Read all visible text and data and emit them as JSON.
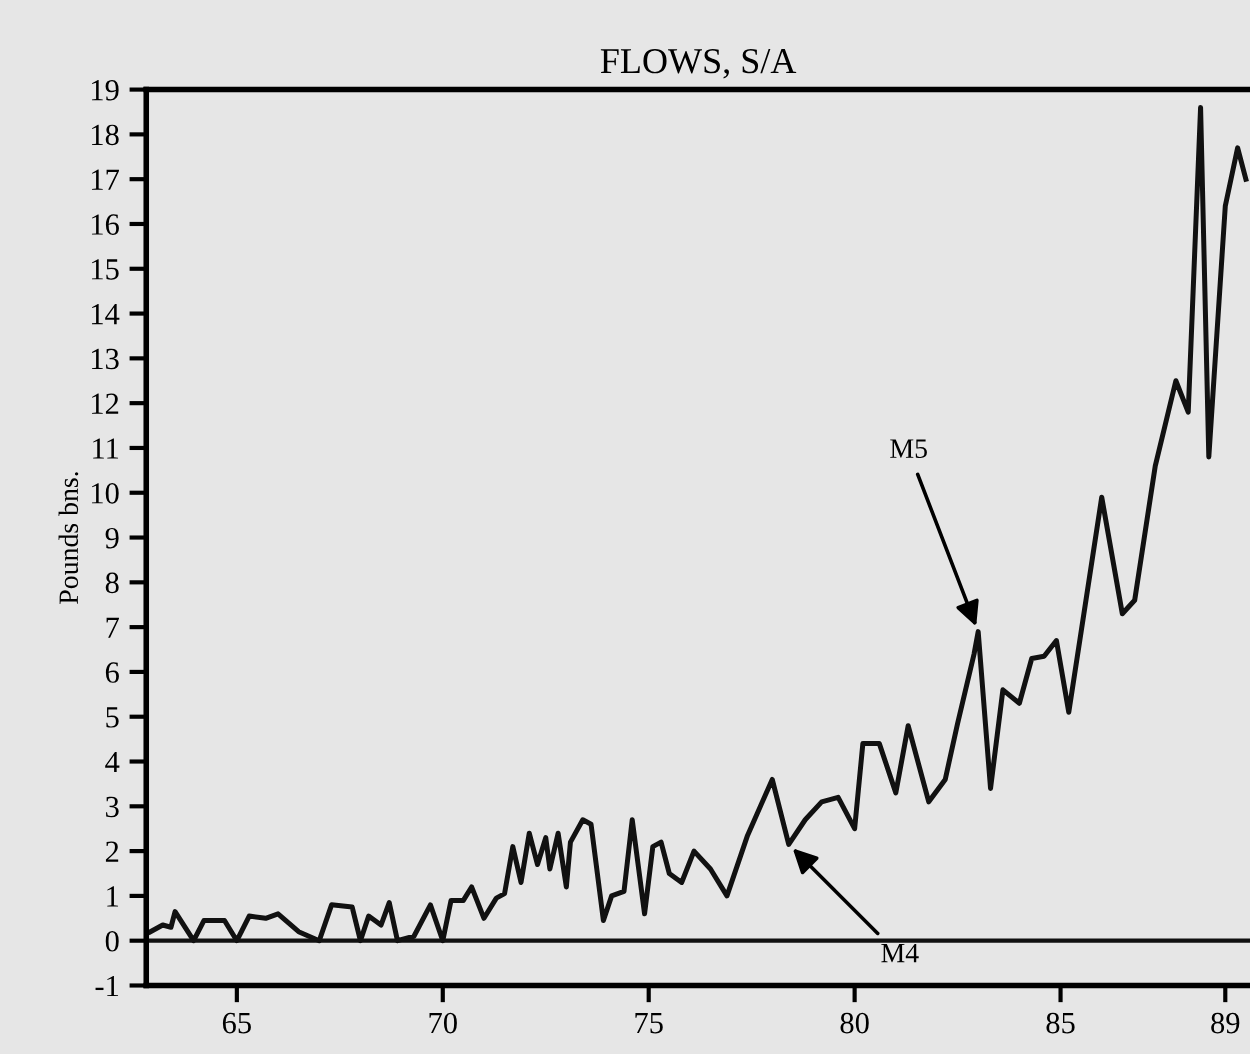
{
  "chart_data": {
    "type": "line",
    "title": "FLOWS, S/A",
    "ylabel": "Pounds bns.",
    "x": [
      62.9,
      63.2,
      63.4,
      63.5,
      63.95,
      64.2,
      64.7,
      65.0,
      65.3,
      65.7,
      66.0,
      66.5,
      67.0,
      67.3,
      67.8,
      68.0,
      68.2,
      68.5,
      68.7,
      68.9,
      69.3,
      69.7,
      70.0,
      70.2,
      70.5,
      70.7,
      71.0,
      71.3,
      71.5,
      71.7,
      71.9,
      72.1,
      72.3,
      72.5,
      72.6,
      72.8,
      73.0,
      73.1,
      73.4,
      73.6,
      73.9,
      74.1,
      74.4,
      74.6,
      74.9,
      75.1,
      75.3,
      75.5,
      75.8,
      76.1,
      76.5,
      76.9,
      77.4,
      78.0,
      78.4,
      78.8,
      79.2,
      79.6,
      80.0,
      80.2,
      80.6,
      81.0,
      81.3,
      81.8,
      82.2,
      82.5,
      82.9,
      83.0,
      83.3,
      83.6,
      84.0,
      84.3,
      84.6,
      84.9,
      85.2,
      85.5,
      86.0,
      86.5,
      86.8,
      87.3,
      87.8,
      88.1,
      88.4,
      88.6,
      89.0,
      89.3,
      89.5
    ],
    "series": [
      {
        "color": "#111111",
        "values": [
          0.2,
          0.35,
          0.3,
          0.65,
          0.0,
          0.45,
          0.45,
          0.0,
          0.55,
          0.5,
          0.6,
          0.2,
          0.0,
          0.8,
          0.75,
          0.0,
          0.55,
          0.35,
          0.85,
          0.0,
          0.1,
          0.8,
          0.0,
          0.9,
          0.9,
          1.2,
          0.5,
          0.95,
          1.05,
          2.1,
          1.3,
          2.4,
          1.7,
          2.3,
          1.6,
          2.4,
          1.2,
          2.2,
          2.7,
          2.6,
          0.45,
          1.0,
          1.1,
          2.7,
          0.6,
          2.1,
          2.2,
          1.5,
          1.3,
          2.0,
          1.6,
          1.0,
          2.35,
          3.6,
          2.15,
          2.7,
          3.1,
          3.2,
          2.5,
          4.4,
          4.4,
          3.3,
          4.8,
          3.1,
          3.6,
          4.85,
          6.4,
          6.9,
          3.4,
          5.6,
          5.3,
          6.3,
          6.35,
          6.7,
          5.1,
          6.9,
          9.9,
          7.3,
          7.6,
          10.6,
          12.5,
          11.8,
          18.6,
          10.8,
          16.4,
          17.7,
          17.0
        ]
      }
    ],
    "xlim": [
      62.8,
      89.6
    ],
    "xticks": [
      65,
      70,
      75,
      80,
      85,
      89
    ],
    "ylim": [
      -1,
      19
    ],
    "yticks": [
      -1,
      0,
      1,
      2,
      3,
      4,
      5,
      6,
      7,
      8,
      9,
      10,
      11,
      12,
      13,
      14,
      15,
      16,
      17,
      18,
      19
    ],
    "ref_lines": [
      {
        "axis": "y",
        "value": 0,
        "color": "#111111"
      }
    ],
    "annotations": [
      {
        "text": "M4",
        "x": 78.4,
        "y": 2.15
      },
      {
        "text": "M5",
        "x": 83.0,
        "y": 6.9
      }
    ],
    "grid": false,
    "marker": "none",
    "line_style": "solid"
  }
}
